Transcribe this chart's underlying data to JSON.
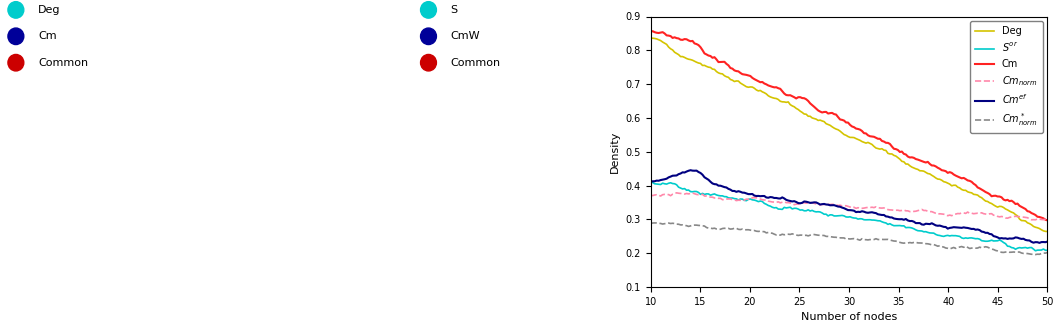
{
  "chart_title": "",
  "xlabel": "Number of nodes",
  "ylabel": "Density",
  "xlim": [
    10,
    50
  ],
  "ylim": [
    0.1,
    0.9
  ],
  "xticks": [
    10,
    15,
    20,
    25,
    30,
    35,
    40,
    45,
    50
  ],
  "yticks": [
    0.1,
    0.2,
    0.3,
    0.4,
    0.5,
    0.6,
    0.7,
    0.8,
    0.9
  ],
  "legend_labels": [
    "Deg",
    "S^{or}",
    "Cm",
    "Cm_{norm}",
    "Cm^{ef}",
    "Cm^*_{norm}"
  ],
  "line_colors": [
    "#d4c400",
    "#00cccc",
    "#ff2222",
    "#ff88aa",
    "#000080",
    "#888888"
  ],
  "line_styles": [
    "-",
    "-",
    "-",
    "--",
    "-",
    "--"
  ],
  "line_widths": [
    1.2,
    1.2,
    1.5,
    1.2,
    1.5,
    1.2
  ],
  "brain_left_legend": [
    {
      "label": "Deg",
      "color": "#00cccc"
    },
    {
      "label": "Cm",
      "color": "#000099"
    },
    {
      "label": "Common",
      "color": "#cc0000"
    }
  ],
  "brain_right_legend": [
    {
      "label": "S",
      "color": "#00cccc"
    },
    {
      "label": "CmW",
      "color": "#000099"
    },
    {
      "label": "Common",
      "color": "#cc0000"
    }
  ]
}
